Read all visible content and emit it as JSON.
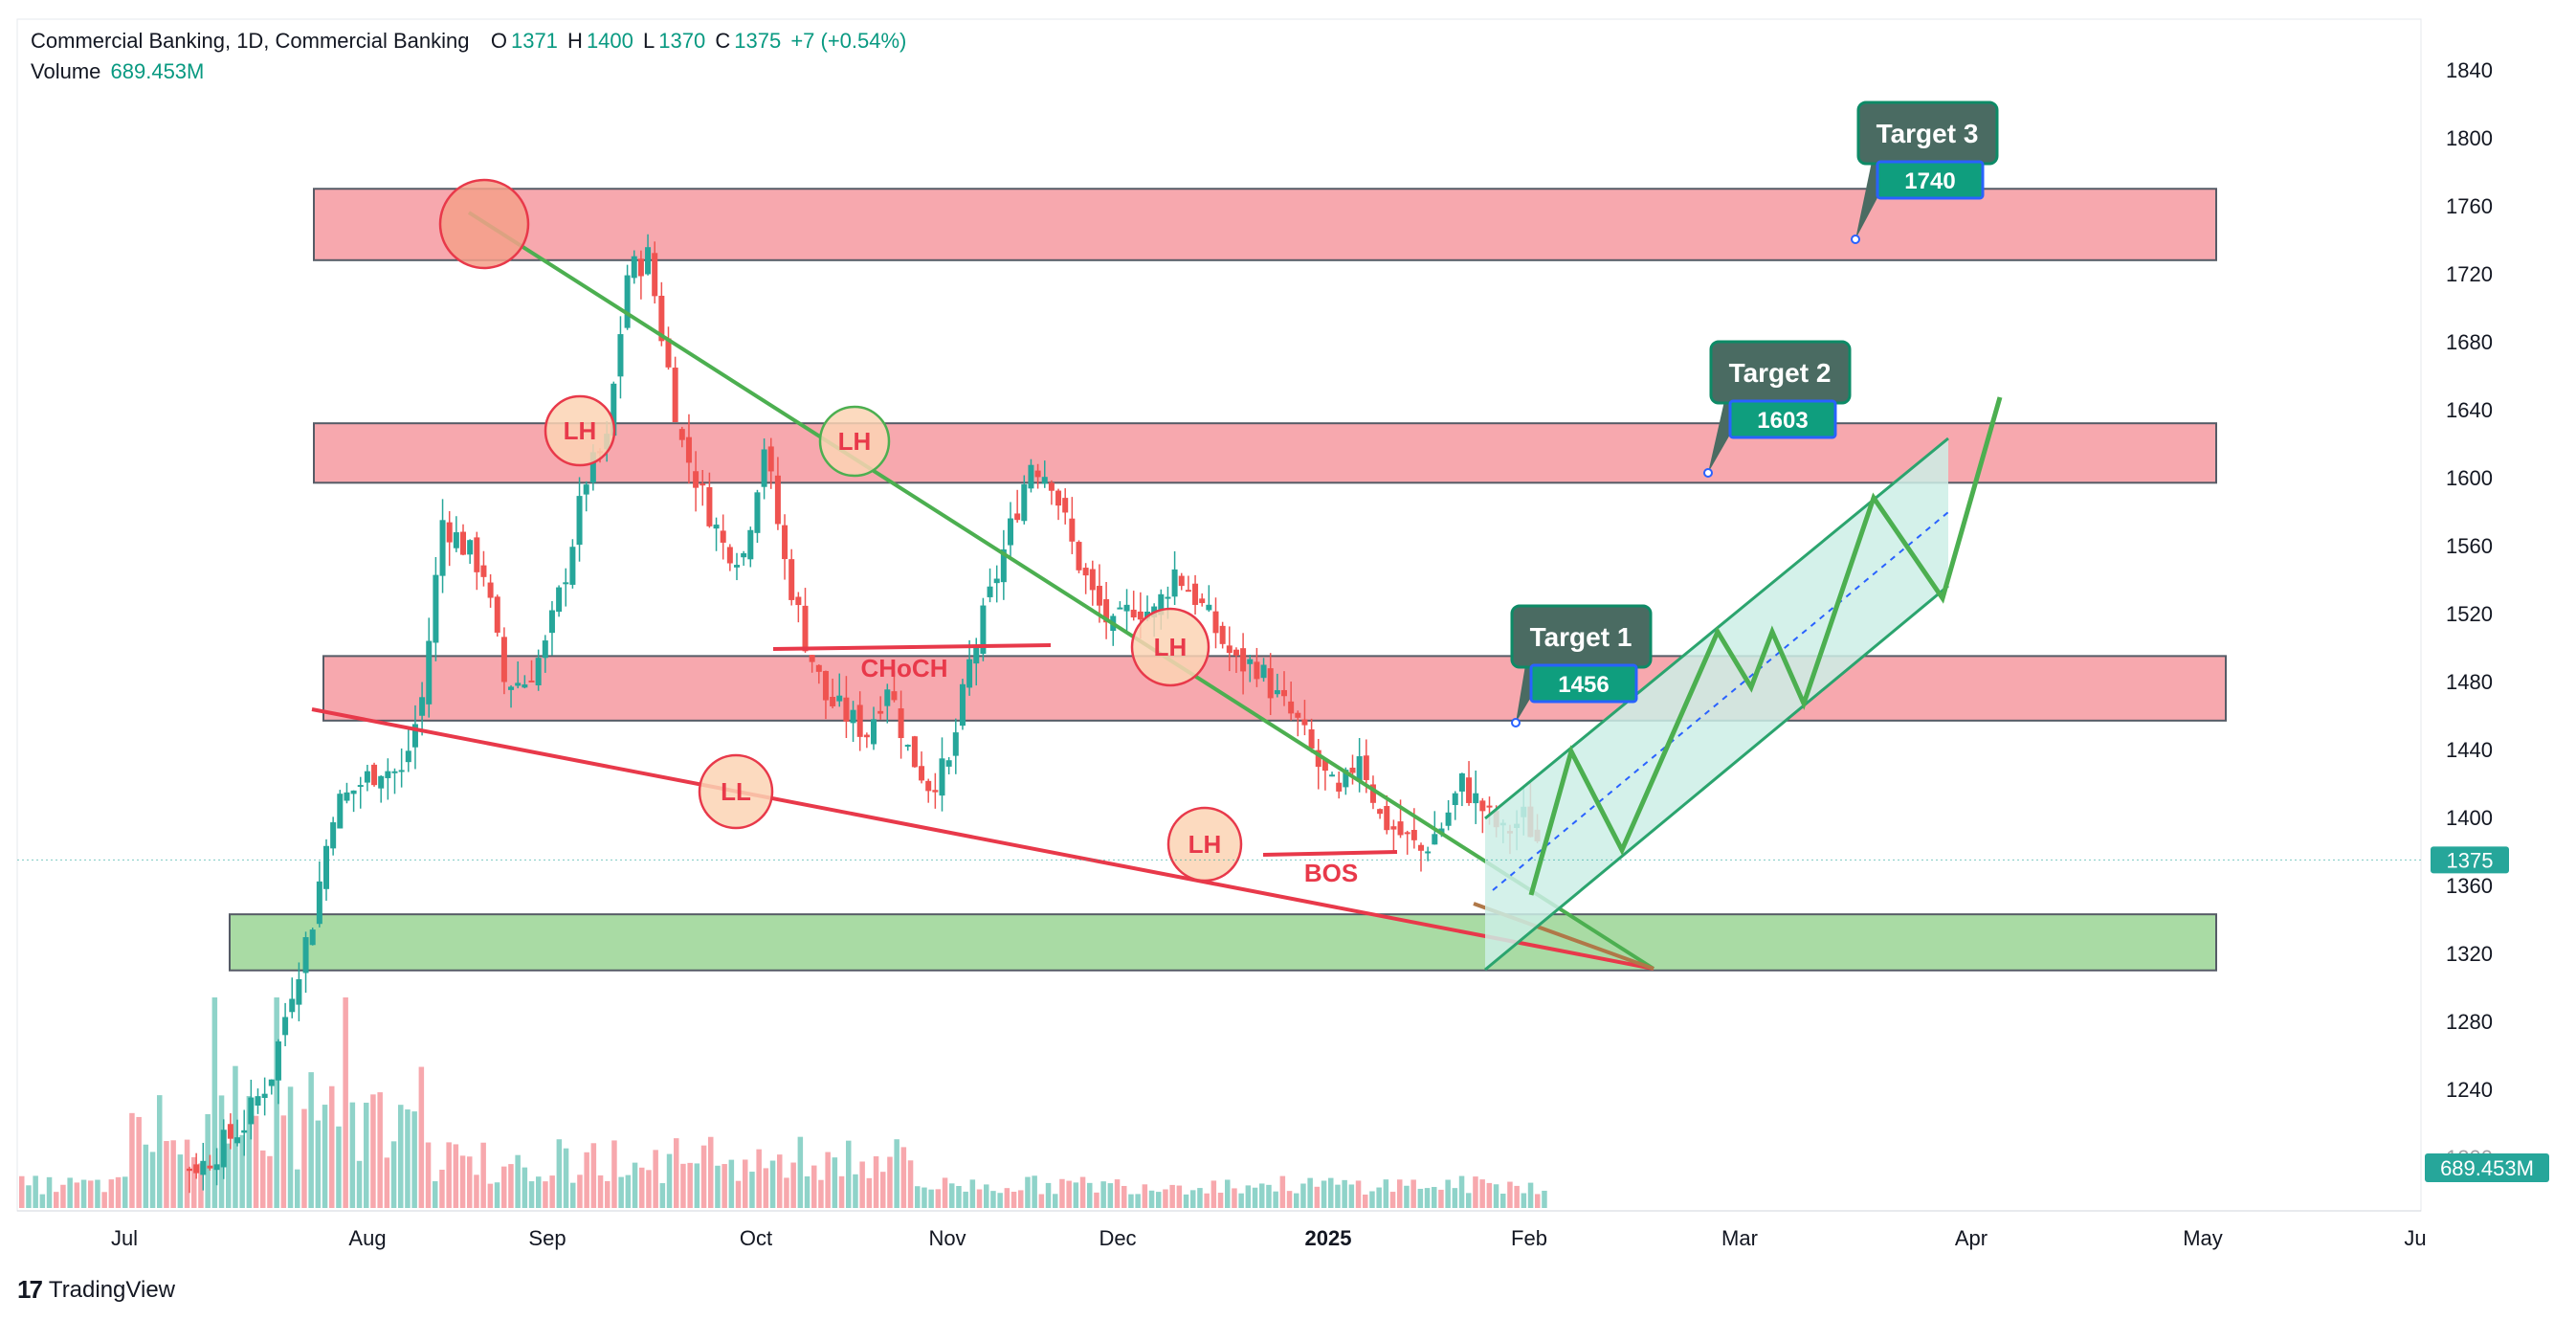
{
  "header": {
    "symbol": "Commercial Banking, 1D, Commercial Banking",
    "o_label": "O",
    "o_value": "1371",
    "h_label": "H",
    "h_value": "1400",
    "l_label": "L",
    "l_value": "1370",
    "c_label": "C",
    "c_value": "1375",
    "change": "+7 (+0.54%)",
    "volume_label": "Volume",
    "volume_value": "689.453M"
  },
  "branding": {
    "logo_text": "TradingView"
  },
  "colors": {
    "up": "#26a69a",
    "down": "#ef5350",
    "vol_up": "#8fd3c9",
    "vol_down": "#f7a8ad",
    "resistance_zone": "#f7a8ae",
    "support_zone": "#a9dba4",
    "trendline_green": "#4caf50",
    "trendline_red": "#e8394a",
    "target_box": "#4a6b62",
    "target_value_bg": "#0f9e7e",
    "channel_fill": "#cdeee6"
  },
  "chart_data": {
    "type": "candlestick",
    "title": "Commercial Banking, 1D",
    "ylim": [
      1200,
      1860
    ],
    "y_ticks": [
      1840,
      1800,
      1760,
      1720,
      1680,
      1640,
      1600,
      1560,
      1520,
      1480,
      1440,
      1400,
      1360,
      1320,
      1280,
      1240,
      1200
    ],
    "x_ticks": [
      "Jul",
      "Aug",
      "Sep",
      "Oct",
      "Nov",
      "Dec",
      "2025",
      "Feb",
      "Mar",
      "Apr",
      "May",
      "Ju"
    ],
    "last_price_label": "1375",
    "volume_badge": "689.453M",
    "series": [
      {
        "name": "price",
        "ohlc_summary": {
          "open": 1371,
          "high": 1400,
          "low": 1370,
          "close": 1375
        }
      },
      {
        "name": "volume",
        "last": "689.453M"
      }
    ],
    "zones": [
      {
        "kind": "resistance",
        "from": 1728,
        "to": 1770
      },
      {
        "kind": "resistance",
        "from": 1597,
        "to": 1632
      },
      {
        "kind": "resistance",
        "from": 1457,
        "to": 1495
      },
      {
        "kind": "support",
        "from": 1310,
        "to": 1343
      }
    ],
    "targets": [
      {
        "label": "Target 1",
        "value": "1456"
      },
      {
        "label": "Target 2",
        "value": "1603"
      },
      {
        "label": "Target 3",
        "value": "1740"
      }
    ],
    "annotations": [
      "LH",
      "LH",
      "LL",
      "LH",
      "LH",
      "CHoCH",
      "BOS"
    ]
  }
}
